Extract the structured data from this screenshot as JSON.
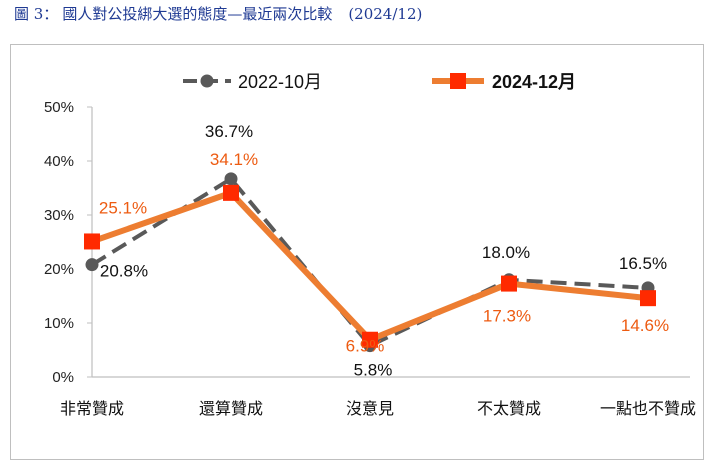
{
  "figure": {
    "label": "圖 3：",
    "title": "國人對公投綁大選的態度—最近兩次比較",
    "date": "(2024/12)"
  },
  "chart_data": {
    "type": "line",
    "categories": [
      "非常贊成",
      "還算贊成",
      "沒意見",
      "不太贊成",
      "一點也不贊成"
    ],
    "ylim": [
      0,
      50
    ],
    "yticks": [
      "0%",
      "10%",
      "20%",
      "30%",
      "40%",
      "50%"
    ],
    "grid": false,
    "legend_position": "top",
    "series": [
      {
        "name": "2022-10月",
        "values": [
          20.8,
          36.7,
          5.8,
          18.0,
          16.5
        ],
        "labels": [
          "20.8%",
          "36.7%",
          "5.8%",
          "18.0%",
          "16.5%"
        ],
        "color": "#595959",
        "style": "dashed",
        "marker": "circle"
      },
      {
        "name": "2024-12月",
        "values": [
          25.1,
          34.1,
          6.9,
          17.3,
          14.6
        ],
        "labels": [
          "25.1%",
          "34.1%",
          "6.9%",
          "17.3%",
          "14.6%"
        ],
        "color": "#ed7d31",
        "label_color": "#ed5b11",
        "marker_color": "#ff2a00",
        "style": "solid",
        "marker": "square"
      }
    ]
  }
}
